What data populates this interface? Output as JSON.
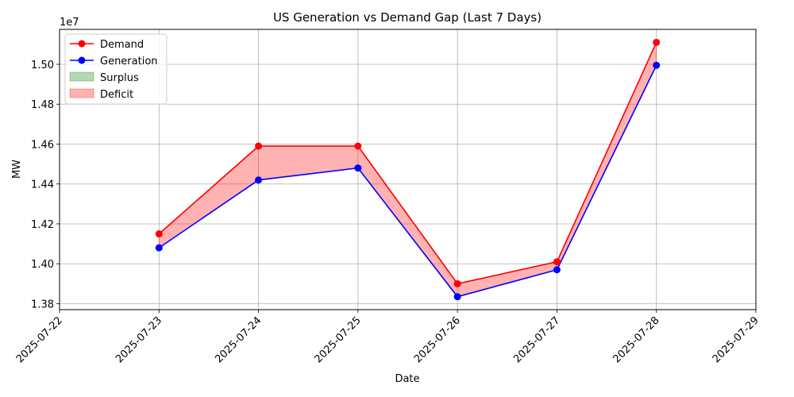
{
  "chart_data": {
    "type": "line",
    "title": "US Generation vs Demand Gap (Last 7 Days)",
    "xlabel": "Date",
    "ylabel": "MW",
    "y_offset_label": "1e7",
    "x_ticks": [
      "2025-07-22",
      "2025-07-23",
      "2025-07-24",
      "2025-07-25",
      "2025-07-26",
      "2025-07-27",
      "2025-07-28",
      "2025-07-29"
    ],
    "y_ticks": [
      "1.38",
      "1.40",
      "1.42",
      "1.44",
      "1.46",
      "1.48",
      "1.50"
    ],
    "y_tick_values": [
      13800000,
      14000000,
      14200000,
      14400000,
      14600000,
      14800000,
      15000000
    ],
    "xlim": [
      "2025-07-22",
      "2025-07-29"
    ],
    "ylim": [
      13770000,
      15175000
    ],
    "grid": true,
    "legend_position": "top-left",
    "x": [
      "2025-07-23",
      "2025-07-24",
      "2025-07-25",
      "2025-07-26",
      "2025-07-27",
      "2025-07-28"
    ],
    "series": [
      {
        "name": "Demand",
        "color": "#ff0000",
        "values": [
          14150000,
          14590000,
          14590000,
          13900000,
          14010000,
          15110000
        ]
      },
      {
        "name": "Generation",
        "color": "#0000ff",
        "values": [
          14080000,
          14420000,
          14480000,
          13835000,
          13970000,
          14995000
        ]
      }
    ],
    "fills": [
      {
        "name": "Surplus",
        "color": "#008000",
        "opacity": 0.3
      },
      {
        "name": "Deficit",
        "color": "#ff0000",
        "opacity": 0.3
      }
    ]
  }
}
